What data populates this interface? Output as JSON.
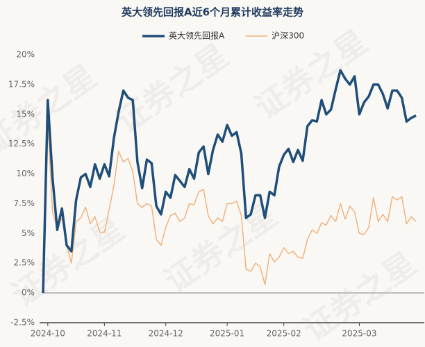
{
  "chart_data": {
    "type": "line",
    "title": "英大领先回报A近6个月累计收益率走势",
    "watermark": "证券之星",
    "categories": [
      null,
      "2024-10",
      null,
      null,
      null,
      null,
      null,
      null,
      null,
      null,
      null,
      null,
      null,
      "2024-11",
      null,
      null,
      null,
      null,
      null,
      null,
      null,
      null,
      null,
      null,
      null,
      null,
      "2024-12",
      null,
      null,
      null,
      null,
      null,
      null,
      null,
      null,
      null,
      null,
      null,
      null,
      "2025-01",
      null,
      null,
      null,
      null,
      null,
      null,
      null,
      null,
      null,
      null,
      null,
      "2025-02",
      null,
      null,
      null,
      null,
      null,
      null,
      null,
      null,
      null,
      null,
      null,
      null,
      null,
      null,
      null,
      "2025-03",
      null,
      null,
      null,
      null,
      null,
      null,
      null,
      null,
      null,
      null,
      null,
      null
    ],
    "series": [
      {
        "name": "英大领先回报A",
        "color": "#1f4e79",
        "width": 3.5,
        "values": [
          0,
          16.2,
          9.7,
          5.3,
          7.1,
          4.0,
          3.5,
          7.8,
          9.7,
          10.0,
          8.9,
          10.8,
          9.6,
          10.8,
          9.8,
          13.0,
          15.2,
          17.0,
          16.4,
          16.2,
          11.0,
          8.8,
          11.2,
          10.9,
          7.3,
          6.6,
          8.5,
          8.0,
          9.9,
          9.4,
          8.9,
          10.4,
          9.6,
          11.8,
          12.3,
          10.0,
          12.0,
          13.3,
          12.7,
          14.1,
          13.2,
          13.5,
          11.7,
          6.3,
          6.6,
          8.2,
          8.2,
          6.3,
          8.5,
          8.2,
          10.6,
          11.6,
          12.1,
          11.0,
          12.0,
          11.1,
          14.0,
          14.5,
          14.4,
          16.2,
          15.0,
          15.4,
          17.1,
          18.7,
          18.0,
          17.5,
          18.2,
          15.0,
          16.0,
          16.5,
          17.5,
          17.5,
          16.7,
          15.5,
          17.0,
          17.0,
          16.4,
          14.4,
          14.7,
          14.9
        ]
      },
      {
        "name": "沪深300",
        "color": "#f2b27e",
        "width": 1.5,
        "values": [
          0,
          14.5,
          6.8,
          5.5,
          6.3,
          4.0,
          2.5,
          6.0,
          6.3,
          7.2,
          5.8,
          6.4,
          5.1,
          5.1,
          7.0,
          9.0,
          11.9,
          11.0,
          11.3,
          10.2,
          7.5,
          7.2,
          7.5,
          7.3,
          4.5,
          4.0,
          5.5,
          6.5,
          6.7,
          6.0,
          6.3,
          7.5,
          7.4,
          8.5,
          8.7,
          6.5,
          5.8,
          6.3,
          6.0,
          7.5,
          7.5,
          7.7,
          6.5,
          2.0,
          1.8,
          2.5,
          2.2,
          0.7,
          3.3,
          2.6,
          3.0,
          3.8,
          3.3,
          3.5,
          3.0,
          2.9,
          4.5,
          5.3,
          5.0,
          5.9,
          5.7,
          6.5,
          6.0,
          7.5,
          6.2,
          7.3,
          6.8,
          5.0,
          4.9,
          5.5,
          8.0,
          6.0,
          6.6,
          6.0,
          8.1,
          7.8,
          8.1,
          5.8,
          6.4,
          6.0
        ]
      }
    ],
    "ylim": [
      -2.5,
      20
    ],
    "yticks": [
      {
        "value": -2.5,
        "label": "-2.5%"
      },
      {
        "value": 0,
        "label": "0%"
      },
      {
        "value": 2.5,
        "label": "2.5%"
      },
      {
        "value": 5,
        "label": "5%"
      },
      {
        "value": 7.5,
        "label": "7.5%"
      },
      {
        "value": 10,
        "label": "10%"
      },
      {
        "value": 12.5,
        "label": "12.5%"
      },
      {
        "value": 15,
        "label": "15%"
      },
      {
        "value": 17.5,
        "label": "17.5%"
      },
      {
        "value": 20,
        "label": "20%"
      }
    ],
    "grid": false,
    "legend": "top"
  }
}
